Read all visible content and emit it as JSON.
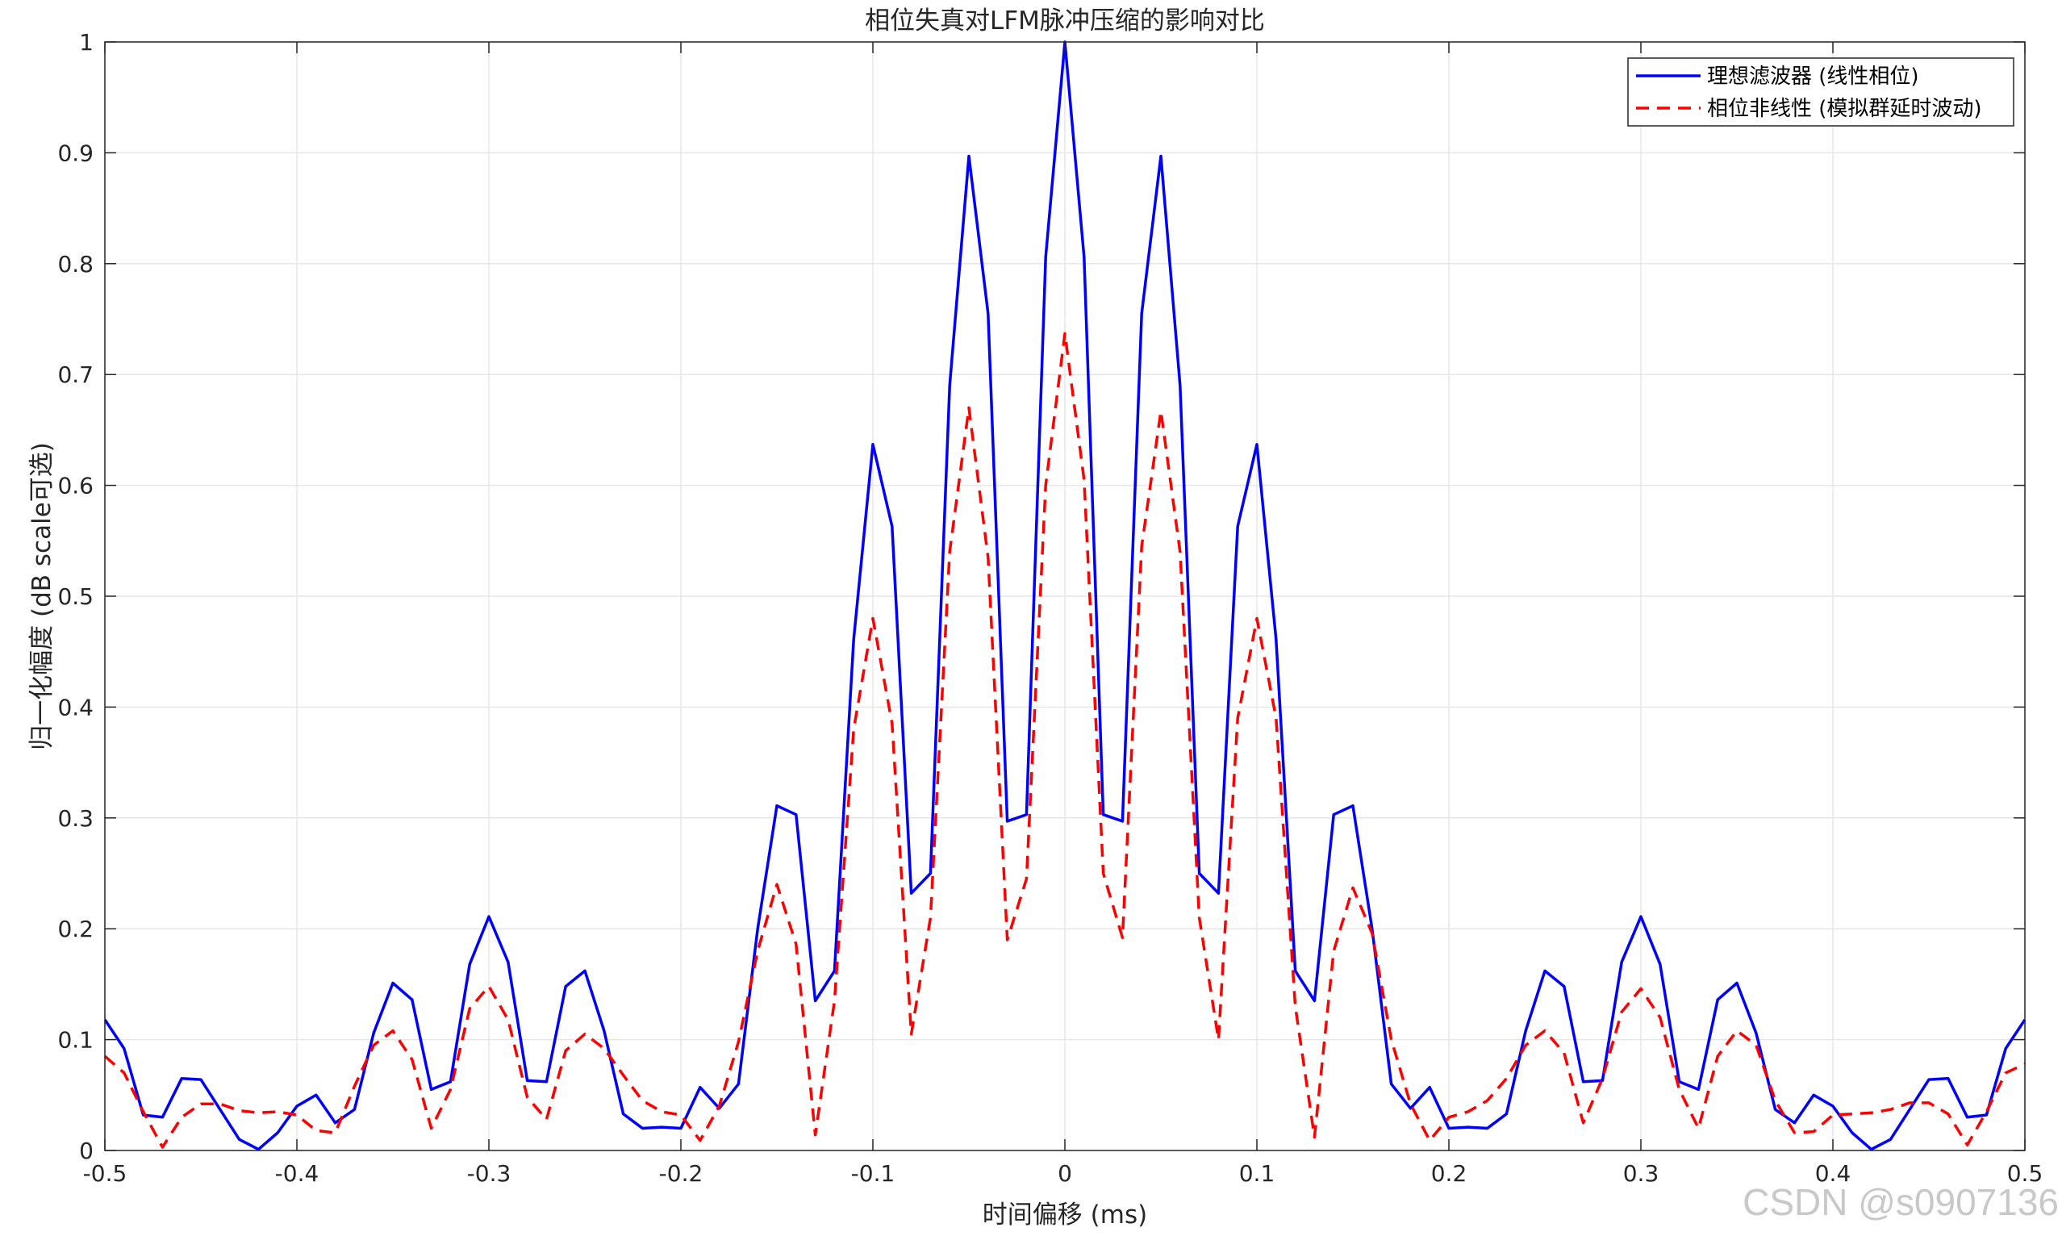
{
  "chart_data": {
    "type": "line",
    "title": "相位失真对LFM脉冲压缩的影响对比",
    "xlabel": "时间偏移 (ms)",
    "ylabel": "归一化幅度 (dB scale可选)",
    "xlim": [
      -0.5,
      0.5
    ],
    "ylim": [
      0,
      1
    ],
    "xticks": [
      -0.5,
      -0.4,
      -0.3,
      -0.2,
      -0.1,
      0,
      0.1,
      0.2,
      0.3,
      0.4,
      0.5
    ],
    "xtick_labels": [
      "-0.5",
      "-0.4",
      "-0.3",
      "-0.2",
      "-0.1",
      "0",
      "0.1",
      "0.2",
      "0.3",
      "0.4",
      "0.5"
    ],
    "yticks": [
      0,
      0.1,
      0.2,
      0.3,
      0.4,
      0.5,
      0.6,
      0.7,
      0.8,
      0.9,
      1
    ],
    "ytick_labels": [
      "0",
      "0.1",
      "0.2",
      "0.3",
      "0.4",
      "0.5",
      "0.6",
      "0.7",
      "0.8",
      "0.9",
      "1"
    ],
    "grid": true,
    "legend_position": "top-right",
    "series": [
      {
        "name": "理想滤波器 (线性相位)",
        "color": "#0000ff",
        "style": "solid",
        "x": [
          -0.5,
          -0.49,
          -0.48,
          -0.47,
          -0.46,
          -0.45,
          -0.44,
          -0.43,
          -0.42,
          -0.41,
          -0.4,
          -0.39,
          -0.38,
          -0.37,
          -0.36,
          -0.35,
          -0.34,
          -0.33,
          -0.32,
          -0.31,
          -0.3,
          -0.29,
          -0.28,
          -0.27,
          -0.26,
          -0.25,
          -0.24,
          -0.23,
          -0.22,
          -0.21,
          -0.2,
          -0.19,
          -0.18,
          -0.17,
          -0.16,
          -0.15,
          -0.14,
          -0.13,
          -0.12,
          -0.11,
          -0.1,
          -0.09,
          -0.08,
          -0.07,
          -0.06,
          -0.05,
          -0.04,
          -0.03,
          -0.02,
          -0.01,
          0,
          0.01,
          0.02,
          0.03,
          0.04,
          0.05,
          0.06,
          0.07,
          0.08,
          0.09,
          0.1,
          0.11,
          0.12,
          0.13,
          0.14,
          0.15,
          0.16,
          0.17,
          0.18,
          0.19,
          0.2,
          0.21,
          0.22,
          0.23,
          0.24,
          0.25,
          0.26,
          0.27,
          0.28,
          0.29,
          0.3,
          0.31,
          0.32,
          0.33,
          0.34,
          0.35,
          0.36,
          0.37,
          0.38,
          0.39,
          0.4,
          0.41,
          0.42,
          0.43,
          0.44,
          0.45,
          0.46,
          0.47,
          0.48,
          0.49,
          0.5
        ],
        "y": [
          0.118,
          0.092,
          0.032,
          0.03,
          0.065,
          0.064,
          0.037,
          0.01,
          0.001,
          0.016,
          0.04,
          0.05,
          0.025,
          0.037,
          0.106,
          0.151,
          0.136,
          0.055,
          0.062,
          0.168,
          0.211,
          0.17,
          0.063,
          0.062,
          0.148,
          0.162,
          0.108,
          0.033,
          0.02,
          0.021,
          0.02,
          0.057,
          0.038,
          0.06,
          0.2,
          0.311,
          0.303,
          0.135,
          0.162,
          0.461,
          0.637,
          0.563,
          0.232,
          0.25,
          0.69,
          0.897,
          0.755,
          0.297,
          0.303,
          0.806,
          1.0,
          0.806,
          0.303,
          0.297,
          0.755,
          0.897,
          0.69,
          0.25,
          0.232,
          0.563,
          0.637,
          0.461,
          0.162,
          0.135,
          0.303,
          0.311,
          0.2,
          0.06,
          0.038,
          0.057,
          0.02,
          0.021,
          0.02,
          0.033,
          0.108,
          0.162,
          0.148,
          0.062,
          0.063,
          0.17,
          0.211,
          0.168,
          0.062,
          0.055,
          0.136,
          0.151,
          0.106,
          0.037,
          0.025,
          0.05,
          0.04,
          0.016,
          0.001,
          0.01,
          0.037,
          0.064,
          0.065,
          0.03,
          0.032,
          0.092,
          0.118
        ]
      },
      {
        "name": "相位非线性 (模拟群延时波动)",
        "color": "#ff0000",
        "style": "dashed",
        "x": [
          -0.5,
          -0.49,
          -0.48,
          -0.47,
          -0.46,
          -0.45,
          -0.44,
          -0.43,
          -0.42,
          -0.41,
          -0.4,
          -0.39,
          -0.38,
          -0.37,
          -0.36,
          -0.35,
          -0.34,
          -0.33,
          -0.32,
          -0.31,
          -0.3,
          -0.29,
          -0.28,
          -0.27,
          -0.26,
          -0.25,
          -0.24,
          -0.23,
          -0.22,
          -0.21,
          -0.2,
          -0.19,
          -0.18,
          -0.17,
          -0.16,
          -0.15,
          -0.14,
          -0.13,
          -0.12,
          -0.11,
          -0.1,
          -0.09,
          -0.08,
          -0.07,
          -0.06,
          -0.05,
          -0.04,
          -0.03,
          -0.02,
          -0.01,
          0,
          0.01,
          0.02,
          0.03,
          0.04,
          0.05,
          0.06,
          0.07,
          0.08,
          0.09,
          0.1,
          0.11,
          0.12,
          0.13,
          0.14,
          0.15,
          0.16,
          0.17,
          0.18,
          0.19,
          0.2,
          0.21,
          0.22,
          0.23,
          0.24,
          0.25,
          0.26,
          0.27,
          0.28,
          0.29,
          0.3,
          0.31,
          0.32,
          0.33,
          0.34,
          0.35,
          0.36,
          0.37,
          0.38,
          0.39,
          0.4,
          0.41,
          0.42,
          0.43,
          0.44,
          0.45,
          0.46,
          0.47,
          0.48,
          0.49,
          0.5
        ],
        "y": [
          0.085,
          0.07,
          0.035,
          0.003,
          0.03,
          0.042,
          0.042,
          0.036,
          0.034,
          0.035,
          0.032,
          0.018,
          0.016,
          0.058,
          0.095,
          0.108,
          0.082,
          0.02,
          0.055,
          0.128,
          0.148,
          0.118,
          0.048,
          0.028,
          0.09,
          0.105,
          0.092,
          0.068,
          0.045,
          0.035,
          0.032,
          0.009,
          0.04,
          0.098,
          0.18,
          0.24,
          0.186,
          0.014,
          0.135,
          0.38,
          0.48,
          0.385,
          0.105,
          0.21,
          0.54,
          0.67,
          0.535,
          0.19,
          0.245,
          0.6,
          0.737,
          0.605,
          0.25,
          0.192,
          0.545,
          0.667,
          0.54,
          0.21,
          0.1,
          0.39,
          0.48,
          0.39,
          0.13,
          0.012,
          0.18,
          0.237,
          0.196,
          0.1,
          0.042,
          0.009,
          0.03,
          0.035,
          0.045,
          0.065,
          0.095,
          0.108,
          0.088,
          0.025,
          0.065,
          0.125,
          0.146,
          0.12,
          0.055,
          0.02,
          0.085,
          0.108,
          0.095,
          0.045,
          0.016,
          0.017,
          0.032,
          0.033,
          0.034,
          0.037,
          0.043,
          0.043,
          0.033,
          0.005,
          0.035,
          0.07,
          0.078
        ]
      }
    ]
  },
  "watermark": "CSDN @s0907136"
}
